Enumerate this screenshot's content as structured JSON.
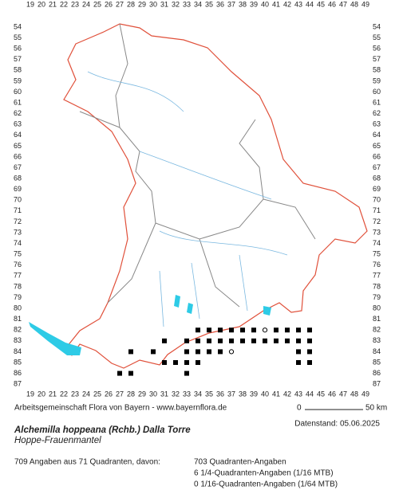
{
  "map": {
    "columns": [
      19,
      20,
      21,
      22,
      23,
      24,
      25,
      26,
      27,
      28,
      29,
      30,
      31,
      32,
      33,
      34,
      35,
      36,
      37,
      38,
      39,
      40,
      41,
      42,
      43,
      44,
      45,
      46,
      47,
      48,
      49
    ],
    "rows": [
      54,
      55,
      56,
      57,
      58,
      59,
      60,
      61,
      62,
      63,
      64,
      65,
      66,
      67,
      68,
      69,
      70,
      71,
      72,
      73,
      74,
      75,
      76,
      77,
      78,
      79,
      80,
      81,
      82,
      83,
      84,
      85,
      86,
      87
    ],
    "records": [
      {
        "col": 34,
        "row": 82,
        "symbol": "square"
      },
      {
        "col": 35,
        "row": 82,
        "symbol": "square"
      },
      {
        "col": 36,
        "row": 82,
        "symbol": "square"
      },
      {
        "col": 37,
        "row": 82,
        "symbol": "square"
      },
      {
        "col": 38,
        "row": 82,
        "symbol": "square"
      },
      {
        "col": 39,
        "row": 82,
        "symbol": "square"
      },
      {
        "col": 40,
        "row": 82,
        "symbol": "circle"
      },
      {
        "col": 41,
        "row": 82,
        "symbol": "square"
      },
      {
        "col": 42,
        "row": 82,
        "symbol": "square"
      },
      {
        "col": 43,
        "row": 82,
        "symbol": "square"
      },
      {
        "col": 44,
        "row": 82,
        "symbol": "square"
      },
      {
        "col": 31,
        "row": 83,
        "symbol": "square"
      },
      {
        "col": 33,
        "row": 83,
        "symbol": "square"
      },
      {
        "col": 34,
        "row": 83,
        "symbol": "square"
      },
      {
        "col": 35,
        "row": 83,
        "symbol": "square"
      },
      {
        "col": 36,
        "row": 83,
        "symbol": "square"
      },
      {
        "col": 37,
        "row": 83,
        "symbol": "square"
      },
      {
        "col": 38,
        "row": 83,
        "symbol": "square"
      },
      {
        "col": 39,
        "row": 83,
        "symbol": "square"
      },
      {
        "col": 40,
        "row": 83,
        "symbol": "square"
      },
      {
        "col": 41,
        "row": 83,
        "symbol": "square"
      },
      {
        "col": 42,
        "row": 83,
        "symbol": "square"
      },
      {
        "col": 43,
        "row": 83,
        "symbol": "square"
      },
      {
        "col": 44,
        "row": 83,
        "symbol": "square"
      },
      {
        "col": 28,
        "row": 84,
        "symbol": "square"
      },
      {
        "col": 30,
        "row": 84,
        "symbol": "square"
      },
      {
        "col": 33,
        "row": 84,
        "symbol": "square"
      },
      {
        "col": 34,
        "row": 84,
        "symbol": "square"
      },
      {
        "col": 35,
        "row": 84,
        "symbol": "square"
      },
      {
        "col": 36,
        "row": 84,
        "symbol": "square"
      },
      {
        "col": 37,
        "row": 84,
        "symbol": "circle"
      },
      {
        "col": 43,
        "row": 84,
        "symbol": "square"
      },
      {
        "col": 44,
        "row": 84,
        "symbol": "square"
      },
      {
        "col": 31,
        "row": 85,
        "symbol": "square"
      },
      {
        "col": 32,
        "row": 85,
        "symbol": "square"
      },
      {
        "col": 33,
        "row": 85,
        "symbol": "square"
      },
      {
        "col": 34,
        "row": 85,
        "symbol": "square"
      },
      {
        "col": 43,
        "row": 85,
        "symbol": "square"
      },
      {
        "col": 44,
        "row": 85,
        "symbol": "square"
      },
      {
        "col": 27,
        "row": 86,
        "symbol": "square"
      },
      {
        "col": 28,
        "row": 86,
        "symbol": "square"
      },
      {
        "col": 33,
        "row": 86,
        "symbol": "square"
      }
    ]
  },
  "footer": {
    "credit": "Arbeitsgemeinschaft Flora von Bayern - www.bayernflora.de",
    "scale_start": "0",
    "scale_end": "50 km",
    "date": "Datenstand: 05.06.2025",
    "species": "Alchemilla hoppeana (Rchb.) Dalla Torre",
    "common_name": "Hoppe-Frauenmantel",
    "summary": "709 Angaben aus 71 Quadranten, davon:",
    "breakdown": [
      "703 Quadranten-Angaben",
      "6 1/4-Quadranten-Angaben (1/16 MTB)",
      "0 1/16-Quadranten-Angaben (1/64 MTB)"
    ]
  }
}
